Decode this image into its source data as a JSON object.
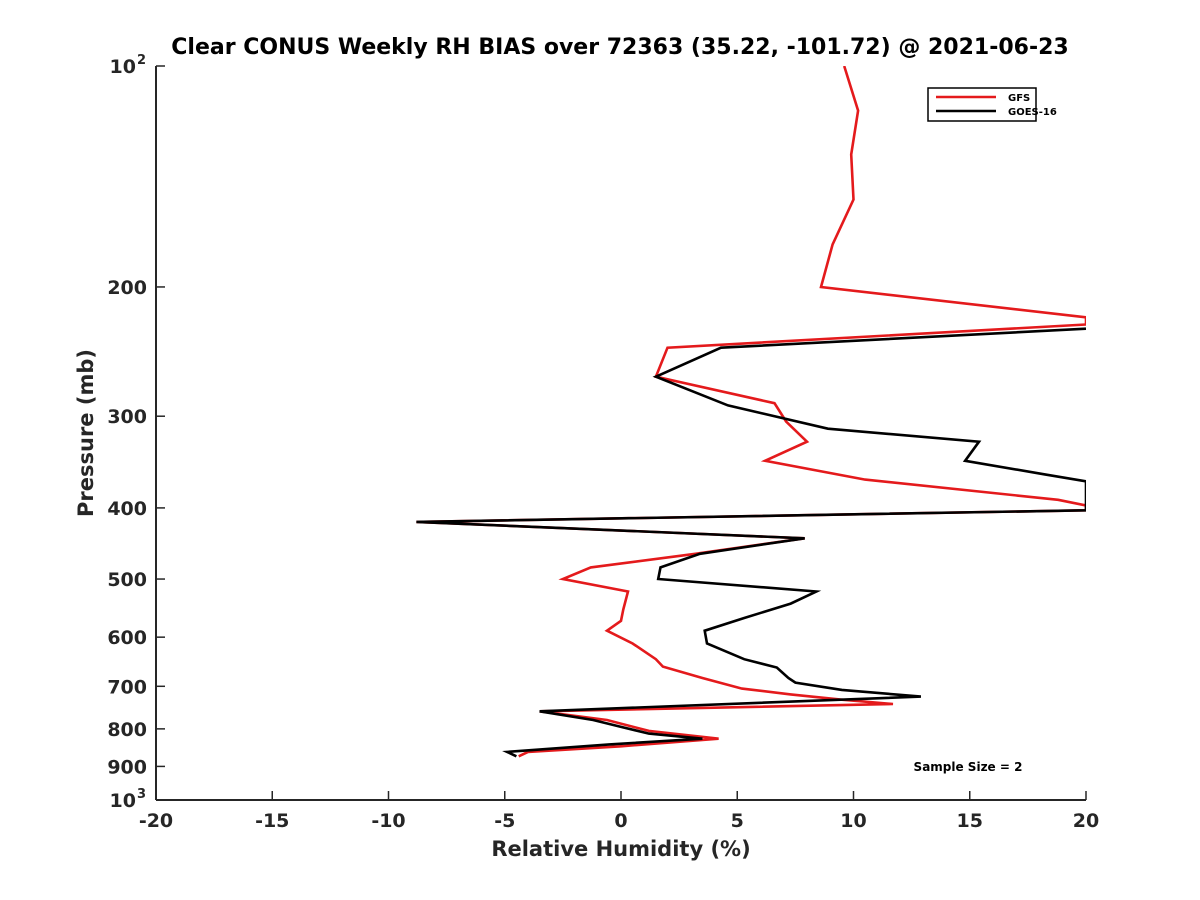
{
  "colors": {
    "gfs": "#e41a1c",
    "goes": "#000000",
    "axis": "#262626"
  },
  "chart_data": {
    "type": "line",
    "title": "Clear CONUS Weekly RH BIAS over 72363 (35.22, -101.72) @ 2021-06-23",
    "xlabel": "Relative Humidity (%)",
    "ylabel": "Pressure (mb)",
    "xlim": [
      -20,
      20
    ],
    "ylim": [
      100,
      1000
    ],
    "y_scale": "log",
    "y_reversed": true,
    "grid": false,
    "legend_position": "top-right",
    "x_ticks": [
      "-20",
      "-15",
      "-10",
      "-5",
      "0",
      "5",
      "10",
      "15",
      "20"
    ],
    "y_ticks": [
      {
        "value": 100,
        "base": "10",
        "exp": "2"
      },
      {
        "value": 200,
        "label": "200"
      },
      {
        "value": 300,
        "label": "300"
      },
      {
        "value": 400,
        "label": "400"
      },
      {
        "value": 500,
        "label": "500"
      },
      {
        "value": 600,
        "label": "600"
      },
      {
        "value": 700,
        "label": "700"
      },
      {
        "value": 800,
        "label": "800"
      },
      {
        "value": 900,
        "label": "900"
      },
      {
        "value": 1000,
        "base": "10",
        "exp": "3"
      }
    ],
    "annotation": "Sample Size = 2",
    "series": [
      {
        "name": "GFS",
        "color": "#e41a1c",
        "points": [
          [
            9.6,
            100
          ],
          [
            10.2,
            115
          ],
          [
            9.9,
            132
          ],
          [
            10.0,
            152
          ],
          [
            9.1,
            175
          ],
          [
            8.6,
            200
          ],
          [
            20,
            220
          ],
          [
            20,
            225
          ],
          [
            2.0,
            242
          ],
          [
            1.5,
            265
          ],
          [
            6.6,
            288
          ],
          [
            7.1,
            305
          ],
          [
            8.0,
            325
          ],
          [
            6.2,
            345
          ],
          [
            10.5,
            366
          ],
          [
            18.8,
            390
          ],
          [
            20,
            397
          ],
          [
            20,
            403
          ],
          [
            -8.8,
            418
          ],
          [
            7.9,
            440
          ],
          [
            3.2,
            462
          ],
          [
            -1.3,
            482
          ],
          [
            -2.5,
            500
          ],
          [
            0.3,
            520
          ],
          [
            0.1,
            550
          ],
          [
            0.0,
            570
          ],
          [
            -0.6,
            588
          ],
          [
            0.5,
            612
          ],
          [
            1.5,
            643
          ],
          [
            1.8,
            658
          ],
          [
            3.5,
            682
          ],
          [
            5.2,
            705
          ],
          [
            7.3,
            718
          ],
          [
            9.5,
            730
          ],
          [
            11.7,
            740
          ],
          [
            -3.5,
            757
          ],
          [
            -0.6,
            778
          ],
          [
            1.2,
            805
          ],
          [
            4.2,
            825
          ],
          [
            0.0,
            845
          ],
          [
            -4.0,
            860
          ],
          [
            -4.4,
            872
          ]
        ]
      },
      {
        "name": "GOES-16",
        "color": "#000000",
        "points": [
          [
            20,
            228
          ],
          [
            4.3,
            242
          ],
          [
            1.5,
            265
          ],
          [
            4.6,
            290
          ],
          [
            8.9,
            312
          ],
          [
            15.4,
            325
          ],
          [
            14.8,
            345
          ],
          [
            18.2,
            360
          ],
          [
            20,
            368
          ],
          [
            20,
            403
          ],
          [
            -8.8,
            418
          ],
          [
            7.9,
            440
          ],
          [
            3.4,
            462
          ],
          [
            1.7,
            482
          ],
          [
            1.6,
            500
          ],
          [
            8.4,
            520
          ],
          [
            7.3,
            540
          ],
          [
            5.3,
            565
          ],
          [
            3.6,
            588
          ],
          [
            3.7,
            612
          ],
          [
            5.3,
            643
          ],
          [
            6.7,
            660
          ],
          [
            7.2,
            682
          ],
          [
            7.5,
            692
          ],
          [
            9.5,
            708
          ],
          [
            12.9,
            723
          ],
          [
            -3.5,
            757
          ],
          [
            -1.2,
            778
          ],
          [
            0.0,
            795
          ],
          [
            1.2,
            812
          ],
          [
            3.5,
            825
          ],
          [
            -0.5,
            840
          ],
          [
            -4.9,
            860
          ],
          [
            -4.5,
            872
          ]
        ]
      }
    ]
  }
}
